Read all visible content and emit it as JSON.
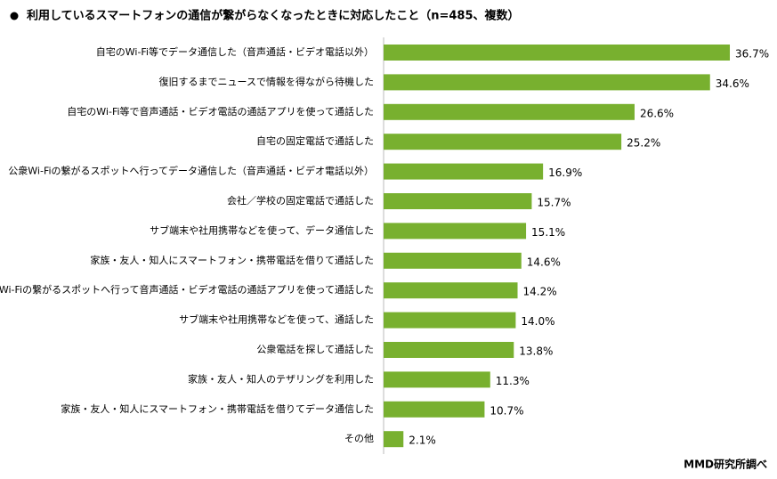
{
  "chart_data": {
    "type": "bar",
    "orientation": "horizontal",
    "title": "利用しているスマートフォンの通信が繋がらなくなったときに対応したこと（n=485、複数）",
    "source": "MMD研究所調べ",
    "color": "#78b02f",
    "categories": [
      "自宅のWi-Fi等でデータ通信した（音声通話・ビデオ電話以外）",
      "復旧するまでニュースで情報を得ながら待機した",
      "自宅のWi-Fi等で音声通話・ビデオ電話の通話アプリを使って通話した",
      "自宅の固定電話で通話した",
      "公衆Wi-Fiの繋がるスポットへ行ってデータ通信した（音声通話・ビデオ電話以外）",
      "会社／学校の固定電話で通話した",
      "サブ端末や社用携帯などを使って、データ通信した",
      "家族・友人・知人にスマートフォン・携帯電話を借りて通話した",
      "公衆Wi-Fiの繋がるスポットへ行って音声通話・ビデオ電話の通話アプリを使って通話した",
      "サブ端末や社用携帯などを使って、通話した",
      "公衆電話を探して通話した",
      "家族・友人・知人のテザリングを利用した",
      "家族・友人・知人にスマートフォン・携帯電話を借りてデータ通信した",
      "その他"
    ],
    "values": [
      36.7,
      34.6,
      26.6,
      25.2,
      16.9,
      15.7,
      15.1,
      14.6,
      14.2,
      14.0,
      13.8,
      11.3,
      10.7,
      2.1
    ],
    "value_labels": [
      "36.7%",
      "34.6%",
      "26.6%",
      "25.2%",
      "16.9%",
      "15.7%",
      "15.1%",
      "14.6%",
      "14.2%",
      "14.0%",
      "13.8%",
      "11.3%",
      "10.7%",
      "2.1%"
    ]
  }
}
